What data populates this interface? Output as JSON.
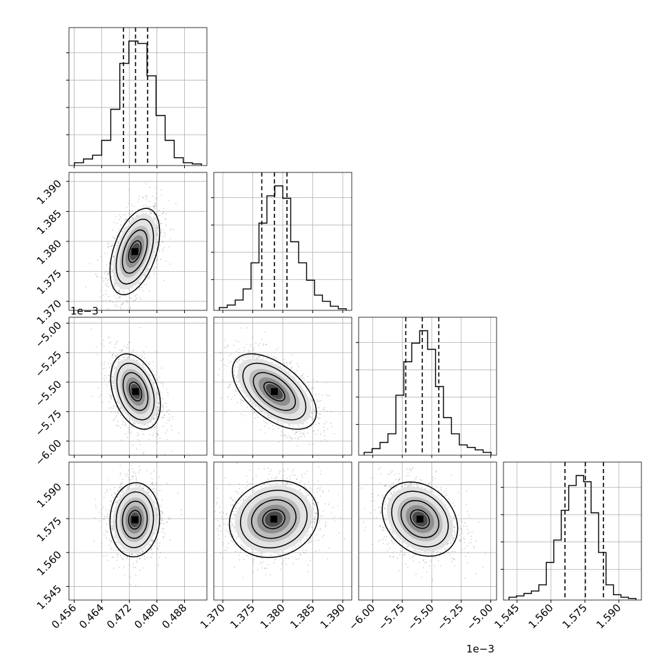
{
  "chart_data": {
    "type": "corner",
    "title": "",
    "grid": true,
    "parameters": [
      {
        "range": [
          0.4545,
          0.4945
        ],
        "ticks": [
          0.456,
          0.464,
          0.472,
          0.48,
          0.488
        ],
        "tick_labels": [
          "0.456",
          "0.464",
          "0.472",
          "0.480",
          "0.488"
        ],
        "offset_label": "",
        "quantiles": [
          0.4703,
          0.4738,
          0.4773
        ],
        "hist_bins": [
          0.02,
          0.05,
          0.08,
          0.2,
          0.45,
          0.82,
          1.0,
          0.98,
          0.72,
          0.4,
          0.2,
          0.06,
          0.02,
          0.01
        ]
      },
      {
        "range": [
          1.3685,
          1.3915
        ],
        "ticks": [
          1.37,
          1.375,
          1.38,
          1.385,
          1.39
        ],
        "tick_labels": [
          "1.370",
          "1.375",
          "1.380",
          "1.385",
          "1.390"
        ],
        "offset_label": "",
        "quantiles": [
          1.3765,
          1.3786,
          1.3807
        ],
        "hist_bins": [
          0.02,
          0.04,
          0.08,
          0.17,
          0.38,
          0.7,
          0.92,
          1.0,
          0.9,
          0.55,
          0.38,
          0.24,
          0.12,
          0.07,
          0.03,
          0.01
        ]
      },
      {
        "range": [
          -6.12,
          -4.95
        ],
        "ticks": [
          -6.0,
          -5.75,
          -5.5,
          -5.25,
          -5.0
        ],
        "tick_labels": [
          "−6.00",
          "−5.75",
          "−5.50",
          "−5.25",
          "−5.00"
        ],
        "offset_label": "1e−3",
        "quantiles": [
          -5.72,
          -5.58,
          -5.44
        ],
        "hist_bins": [
          0.02,
          0.05,
          0.1,
          0.17,
          0.48,
          0.75,
          0.9,
          1.0,
          0.85,
          0.55,
          0.3,
          0.17,
          0.08,
          0.06,
          0.04,
          0.02
        ]
      },
      {
        "range": [
          1.539,
          1.6
        ],
        "ticks": [
          1.545,
          1.56,
          1.575,
          1.59
        ],
        "tick_labels": [
          "1.545",
          "1.560",
          "1.575",
          "1.590"
        ],
        "offset_label": "",
        "quantiles": [
          1.5662,
          1.5752,
          1.5832
        ],
        "hist_bins": [
          0.02,
          0.03,
          0.05,
          0.07,
          0.12,
          0.3,
          0.48,
          0.72,
          0.92,
          1.0,
          0.95,
          0.7,
          0.38,
          0.12,
          0.04,
          0.02,
          0.01
        ]
      }
    ],
    "pairs": [
      {
        "x": 0,
        "y": 1,
        "mean": [
          0.4736,
          1.3783
        ],
        "sd": [
          0.0036,
          0.0036
        ],
        "rho": 0.45
      },
      {
        "x": 0,
        "y": 2,
        "mean": [
          0.4738,
          -5.58
        ],
        "sd": [
          0.0036,
          0.16
        ],
        "rho": -0.35
      },
      {
        "x": 1,
        "y": 2,
        "mean": [
          1.3786,
          -5.58
        ],
        "sd": [
          0.0035,
          0.16
        ],
        "rho": -0.55
      },
      {
        "x": 0,
        "y": 3,
        "mean": [
          0.4736,
          1.5745
        ],
        "sd": [
          0.0036,
          0.0082
        ],
        "rho": 0.05
      },
      {
        "x": 1,
        "y": 3,
        "mean": [
          1.3785,
          1.5748
        ],
        "sd": [
          0.0037,
          0.0085
        ],
        "rho": 0.12
      },
      {
        "x": 2,
        "y": 3,
        "mean": [
          -5.6,
          1.5748
        ],
        "sd": [
          0.16,
          0.0082
        ],
        "rho": -0.25
      }
    ],
    "contour_levels": [
      0.5,
      1.0,
      1.5,
      2.0
    ]
  }
}
